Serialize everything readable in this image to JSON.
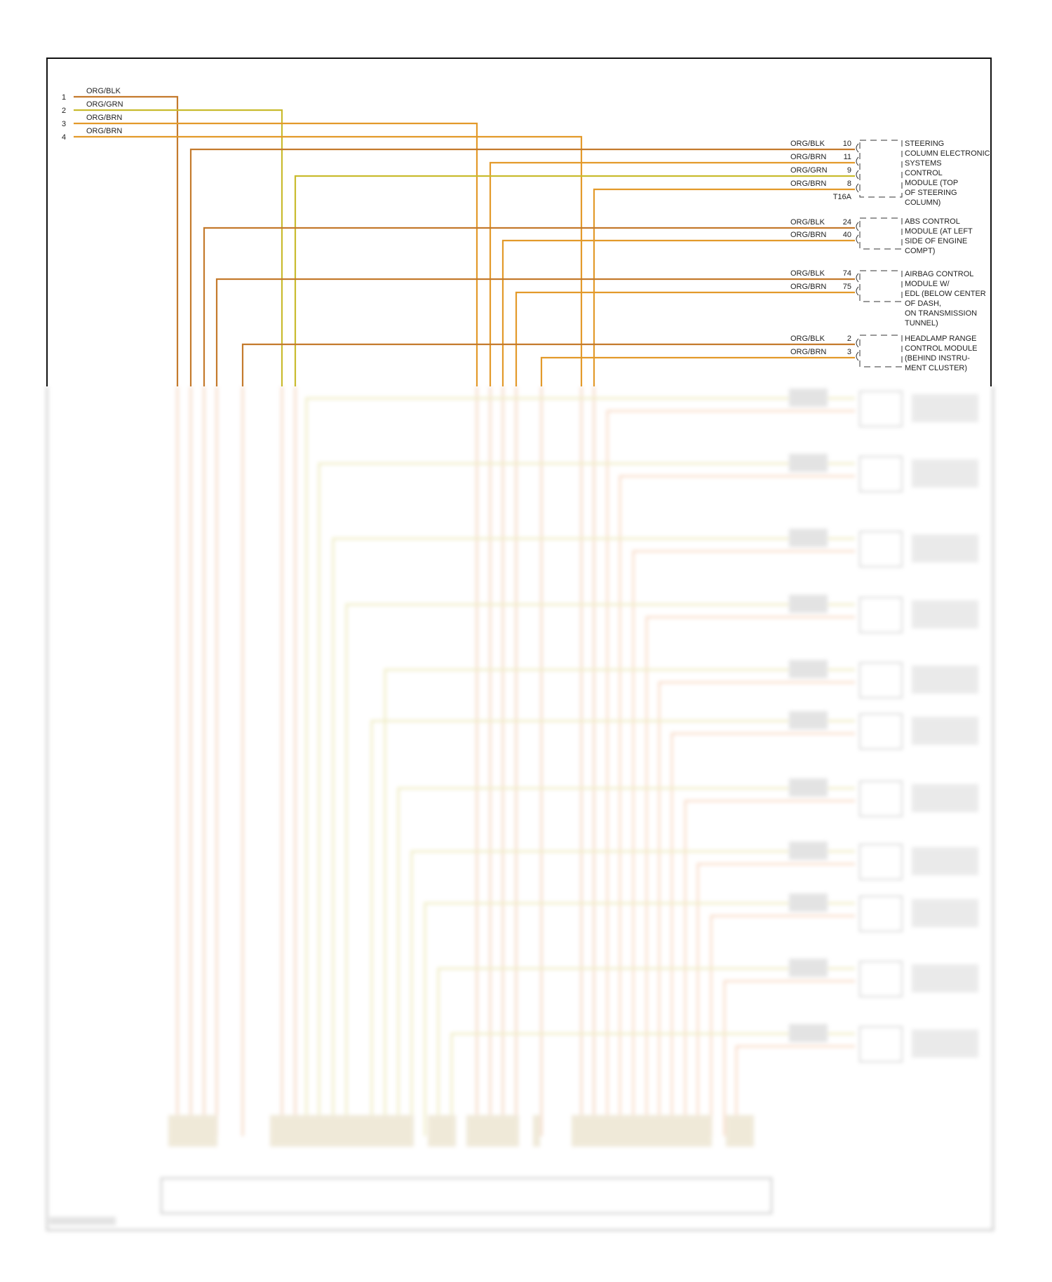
{
  "colors": {
    "ORG/BLK": "#c47a2c",
    "ORG/BRN": "#e39a2a",
    "ORG/GRN": "#c9bb2e",
    "border": "#111111"
  },
  "inputs": [
    {
      "pin": "1",
      "wire": "ORG/BLK"
    },
    {
      "pin": "2",
      "wire": "ORG/GRN"
    },
    {
      "pin": "3",
      "wire": "ORG/BRN"
    },
    {
      "pin": "4",
      "wire": "ORG/BRN"
    }
  ],
  "modules": [
    {
      "name_lines": [
        "STEERING",
        "COLUMN ELECTRONIC",
        "SYSTEMS",
        "CONTROL",
        "MODULE (TOP",
        "OF STEERING",
        "COLUMN)"
      ],
      "connector": "T16A",
      "pins": [
        {
          "wire": "ORG/BLK",
          "pin": "10"
        },
        {
          "wire": "ORG/BRN",
          "pin": "11"
        },
        {
          "wire": "ORG/GRN",
          "pin": "9"
        },
        {
          "wire": "ORG/BRN",
          "pin": "8"
        }
      ]
    },
    {
      "name_lines": [
        "ABS CONTROL",
        "MODULE (AT LEFT",
        "SIDE OF ENGINE",
        "COMPT)"
      ],
      "pins": [
        {
          "wire": "ORG/BLK",
          "pin": "24"
        },
        {
          "wire": "ORG/BRN",
          "pin": "40"
        }
      ]
    },
    {
      "name_lines": [
        "AIRBAG CONTROL",
        "MODULE W/",
        "EDL (BELOW CENTER",
        "OF DASH,",
        "ON TRANSMISSION",
        "TUNNEL)"
      ],
      "pins": [
        {
          "wire": "ORG/BLK",
          "pin": "74"
        },
        {
          "wire": "ORG/BRN",
          "pin": "75"
        }
      ]
    },
    {
      "name_lines": [
        "HEADLAMP RANGE",
        "CONTROL MODULE",
        "(BEHIND INSTRU-",
        "MENT CLUSTER)"
      ],
      "pins": [
        {
          "wire": "ORG/BLK",
          "pin": "2"
        },
        {
          "wire": "ORG/BRN",
          "pin": "3"
        }
      ]
    }
  ]
}
